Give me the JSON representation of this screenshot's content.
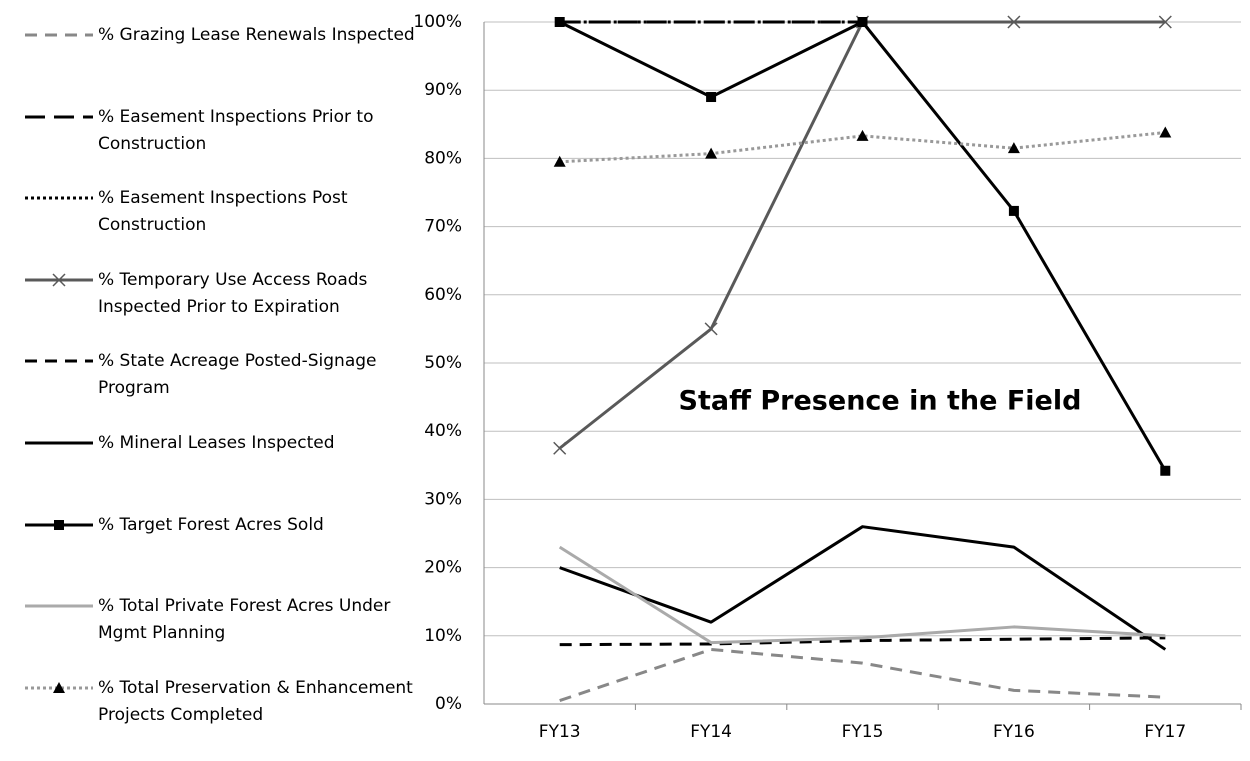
{
  "chart_data": {
    "type": "line",
    "title": "Staff Presence in the Field",
    "categories": [
      "FY13",
      "FY14",
      "FY15",
      "FY16",
      "FY17"
    ],
    "ylim": [
      0,
      100
    ],
    "yticks": [
      {
        "value": 0,
        "label": "0%"
      },
      {
        "value": 10,
        "label": "10%"
      },
      {
        "value": 20,
        "label": "20%"
      },
      {
        "value": 30,
        "label": "30%"
      },
      {
        "value": 40,
        "label": "40%"
      },
      {
        "value": 50,
        "label": "50%"
      },
      {
        "value": 60,
        "label": "60%"
      },
      {
        "value": 70,
        "label": "70%"
      },
      {
        "value": 80,
        "label": "80%"
      },
      {
        "value": 90,
        "label": "90%"
      },
      {
        "value": 100,
        "label": "100%"
      }
    ],
    "grid": true,
    "series": [
      {
        "name": "% Grazing Lease Renewals Inspected",
        "color": "#888888",
        "dash": "dashed",
        "values": [
          0.5,
          8,
          6,
          2,
          1
        ]
      },
      {
        "name": "% Easement Inspections Prior to Construction",
        "color": "#000000",
        "dash": "long-dash",
        "values": [
          100,
          100,
          100,
          100,
          100
        ]
      },
      {
        "name": "% Easement Inspections Post Construction",
        "color": "#000000",
        "dash": "dotted",
        "values": [
          100,
          100,
          100,
          100,
          100
        ]
      },
      {
        "name": "% Temporary Use Access Roads Inspected Prior to Expiration",
        "color": "#595959",
        "marker": "x",
        "values": [
          37.5,
          55,
          100,
          100,
          100
        ]
      },
      {
        "name": "% State Acreage Posted-Signage Program",
        "color": "#000000",
        "dash": "dashed",
        "values": [
          8.7,
          8.8,
          9.3,
          9.5,
          9.7
        ]
      },
      {
        "name": "% Mineral Leases Inspected",
        "color": "#000000",
        "values": [
          20,
          12,
          26,
          23,
          8
        ]
      },
      {
        "name": "% Target Forest Acres Sold",
        "color": "#000000",
        "marker": "square",
        "values": [
          100,
          89,
          100,
          72.3,
          34.2
        ]
      },
      {
        "name": "% Total Private Forest Acres Under Mgmt Planning",
        "color": "#aaaaaa",
        "values": [
          23,
          9,
          9.7,
          11.3,
          10
        ]
      },
      {
        "name": "% Total Preservation & Enhancement Projects Completed",
        "color": "#999999",
        "dash": "dotted",
        "marker": "triangle",
        "values": [
          79.5,
          80.7,
          83.3,
          81.5,
          83.8
        ]
      }
    ]
  }
}
